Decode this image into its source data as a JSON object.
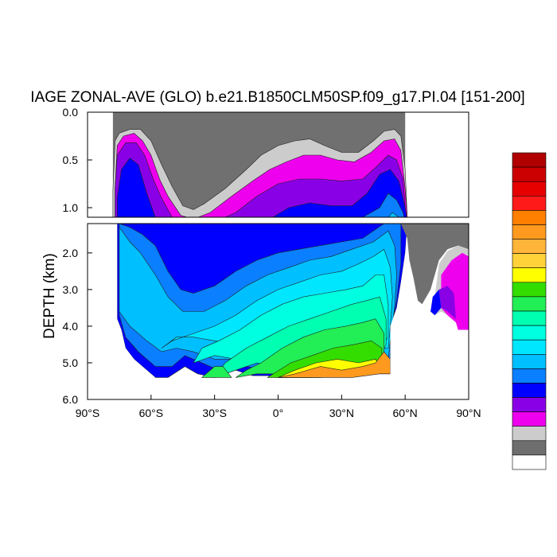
{
  "chart_data": {
    "type": "contour",
    "title": "IAGE ZONAL-AVE (GLO) b.e21.B1850CLM50SP.f09_g17.PI.04 [151-200]",
    "xlabel": "",
    "ylabel": "DEPTH (km)",
    "xlim": [
      -90,
      90
    ],
    "ylim_top_panel": [
      0.0,
      1.1
    ],
    "ylim_bottom_panel": [
      1.2,
      6.0
    ],
    "x_tick_labels": [
      "90°S",
      "60°S",
      "30°S",
      "0°",
      "30°N",
      "60°N",
      "90°N"
    ],
    "x_tick_values": [
      -90,
      -60,
      -30,
      0,
      30,
      60,
      90
    ],
    "y_tick_labels_top": [
      "0.0",
      "0.5",
      "1.0"
    ],
    "y_tick_values_top": [
      0.0,
      0.5,
      1.0
    ],
    "y_tick_labels_bottom": [
      "2.0",
      "3.0",
      "4.0",
      "5.0",
      "6.0"
    ],
    "y_tick_values_bottom": [
      2.0,
      3.0,
      4.0,
      5.0,
      6.0
    ],
    "land_color": "#707070",
    "colorbar_colors": [
      "#b00000",
      "#cc0000",
      "#e60000",
      "#ff1a1a",
      "#ff7f00",
      "#ff9a1f",
      "#ffb43a",
      "#ffd23a",
      "#ffff00",
      "#33dd00",
      "#22ee55",
      "#00ffb0",
      "#00ffe0",
      "#00e6ff",
      "#00bfff",
      "#0a7fff",
      "#0000ff",
      "#8a00e6",
      "#ee00ee",
      "#cccccc",
      "#6e6e6e",
      "#ffffff"
    ],
    "colorbar_labels": [],
    "grid": false,
    "legend": "colorbar-right"
  }
}
